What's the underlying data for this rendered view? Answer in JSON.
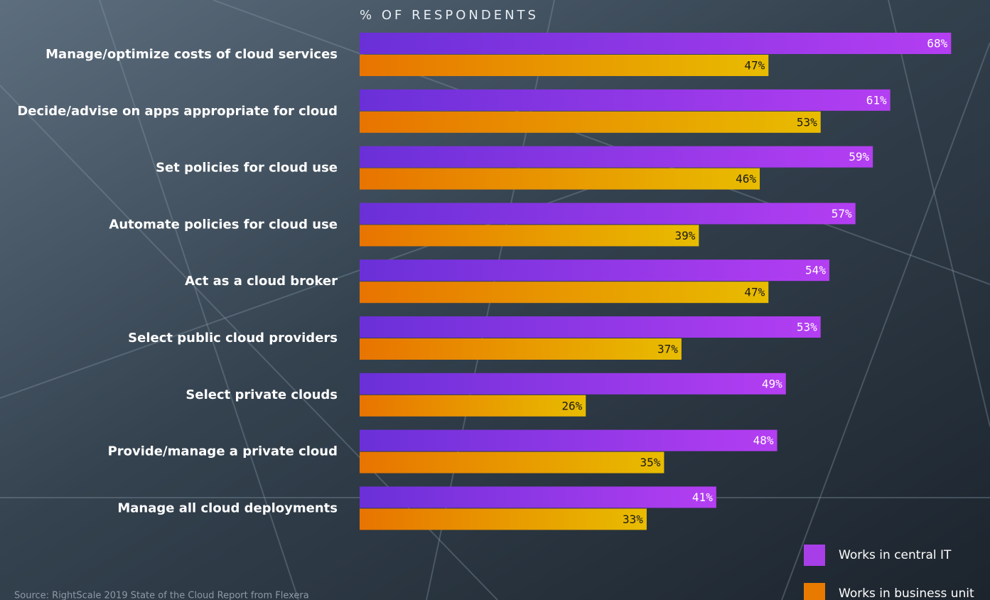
{
  "chart_data": {
    "type": "bar",
    "orientation": "horizontal",
    "title": "% OF RESPONDENTS",
    "categories": [
      "Manage/optimize costs of cloud services",
      "Decide/advise on apps appropriate for cloud",
      "Set policies for cloud use",
      "Automate policies for cloud use",
      "Act as a cloud broker",
      "Select public cloud providers",
      "Select private clouds",
      "Provide/manage a private cloud",
      "Manage all cloud deployments"
    ],
    "series": [
      {
        "name": "Works in central IT",
        "color": "#a83ee8",
        "gradient": [
          "#6a30d8",
          "#b43ef2"
        ],
        "label_color": "#ffffff",
        "values": [
          68,
          61,
          59,
          57,
          54,
          53,
          49,
          48,
          41
        ],
        "value_labels": [
          "68%",
          "61%",
          "59%",
          "57%",
          "54%",
          "53%",
          "49%",
          "48%",
          "41%"
        ]
      },
      {
        "name": "Works in business unit",
        "color": "#e87a00",
        "gradient": [
          "#e87400",
          "#e8bc00"
        ],
        "label_color": "#1a1a1a",
        "values": [
          47,
          53,
          46,
          39,
          47,
          37,
          26,
          35,
          33
        ],
        "value_labels": [
          "47%",
          "53%",
          "46%",
          "39%",
          "47%",
          "37%",
          "26%",
          "35%",
          "33%"
        ]
      }
    ],
    "source": "Source: RightScale 2019 State of the Cloud Report from Flexera"
  }
}
